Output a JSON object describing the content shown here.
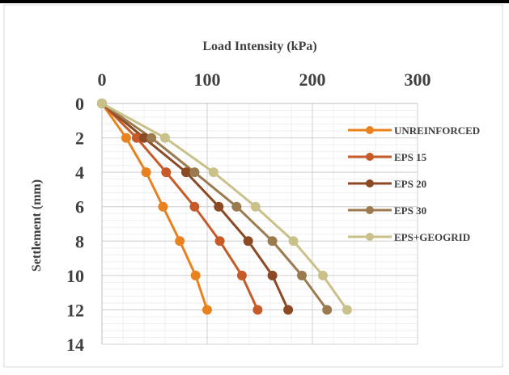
{
  "chart_data": {
    "type": "line",
    "title": "",
    "xlabel": "Load Intensity (kPa)",
    "ylabel": "Settlement (mm)",
    "x_axis_position": "top",
    "y_axis_reversed": true,
    "xlim": [
      0,
      300
    ],
    "ylim": [
      0,
      14
    ],
    "xticks": [
      "0",
      "100",
      "200",
      "300"
    ],
    "yticks": [
      "0",
      "2",
      "4",
      "6",
      "8",
      "10",
      "12",
      "14"
    ],
    "grid": true,
    "legend_position": "right",
    "series": [
      {
        "name": "UNREINFORCED",
        "color": "#e8821e",
        "points": [
          [
            0,
            0
          ],
          [
            23,
            2
          ],
          [
            42,
            4
          ],
          [
            58,
            6
          ],
          [
            74,
            8
          ],
          [
            89,
            10
          ],
          [
            100,
            12
          ]
        ]
      },
      {
        "name": "EPS 15",
        "color": "#c65a28",
        "points": [
          [
            0,
            0
          ],
          [
            33,
            2
          ],
          [
            61,
            4
          ],
          [
            88,
            6
          ],
          [
            112,
            8
          ],
          [
            133,
            10
          ],
          [
            148,
            12
          ]
        ]
      },
      {
        "name": "EPS 20",
        "color": "#8b4a24",
        "points": [
          [
            0,
            0
          ],
          [
            40,
            2
          ],
          [
            80,
            4
          ],
          [
            111,
            6
          ],
          [
            139,
            8
          ],
          [
            162,
            10
          ],
          [
            177,
            12
          ]
        ]
      },
      {
        "name": "EPS 30",
        "color": "#9a7a4e",
        "points": [
          [
            0,
            0
          ],
          [
            47,
            2
          ],
          [
            88,
            4
          ],
          [
            128,
            6
          ],
          [
            162,
            8
          ],
          [
            190,
            10
          ],
          [
            214,
            12
          ]
        ]
      },
      {
        "name": "EPS+GEOGRID",
        "color": "#c9c189",
        "points": [
          [
            0,
            0
          ],
          [
            60,
            2
          ],
          [
            106,
            4
          ],
          [
            146,
            6
          ],
          [
            182,
            8
          ],
          [
            210,
            10
          ],
          [
            233,
            12
          ]
        ]
      }
    ]
  }
}
